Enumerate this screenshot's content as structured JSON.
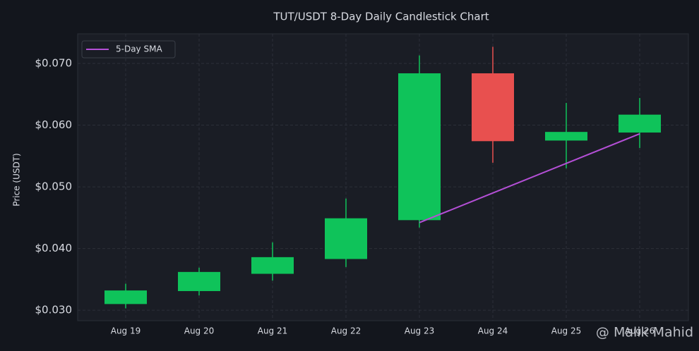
{
  "chart_data": {
    "type": "candlestick",
    "title": "TUT/USDT 8-Day Daily Candlestick Chart",
    "y_label": "Price (USDT)",
    "categories": [
      "Aug 19",
      "Aug 20",
      "Aug 21",
      "Aug 22",
      "Aug 23",
      "Aug 24",
      "Aug 25",
      "Aug 26"
    ],
    "open": [
      0.031,
      0.0331,
      0.0359,
      0.0383,
      0.0446,
      0.0684,
      0.0575,
      0.0588
    ],
    "high": [
      0.0343,
      0.0369,
      0.041,
      0.0481,
      0.0713,
      0.0727,
      0.0636,
      0.0644
    ],
    "low": [
      0.0303,
      0.0324,
      0.0348,
      0.037,
      0.0434,
      0.0539,
      0.053,
      0.0563
    ],
    "close": [
      0.0332,
      0.0362,
      0.0386,
      0.0449,
      0.0684,
      0.0574,
      0.0589,
      0.0617
    ],
    "up_color": "#0fc35a",
    "down_color": "#e8504f",
    "series": [
      {
        "name": "5-Day SMA",
        "color": "#b44fd6",
        "values": [
          null,
          null,
          null,
          null,
          0.0442,
          0.049,
          0.0538,
          0.0586
        ]
      }
    ],
    "ylim": [
      0.0283,
      0.0748
    ],
    "yticks": [
      {
        "value": 0.03,
        "label": "$0.030"
      },
      {
        "value": 0.04,
        "label": "$0.040"
      },
      {
        "value": 0.05,
        "label": "$0.050"
      },
      {
        "value": 0.06,
        "label": "$0.060"
      },
      {
        "value": 0.07,
        "label": "$0.070"
      }
    ],
    "grid": true,
    "legend": "upper left",
    "watermark": "@ Malik Mahid"
  }
}
